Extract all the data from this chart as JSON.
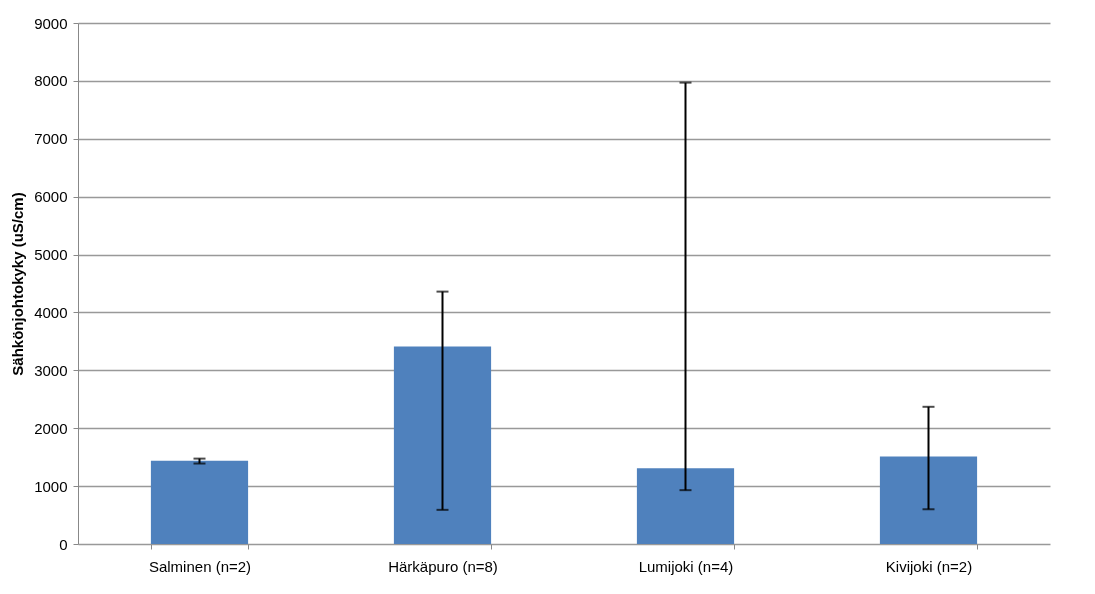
{
  "chart_data": {
    "type": "bar",
    "ylabel": "Sähkönjohtokyky  (uS/cm)",
    "categories": [
      "Salminen (n=2)",
      "Härkäpuro (n=8)",
      "Lumijoki (n=4)",
      "Kivijoki (n=2)"
    ],
    "values": [
      1440,
      3410,
      1310,
      1510
    ],
    "errors": [
      [
        1390,
        1475
      ],
      [
        590,
        4360
      ],
      [
        930,
        7970
      ],
      [
        600,
        2370
      ]
    ],
    "color": "#4f81bd",
    "ylim": [
      0,
      9000
    ],
    "yticks": [
      0,
      1000,
      2000,
      3000,
      4000,
      5000,
      6000,
      7000,
      8000,
      9000
    ],
    "grid": "y"
  }
}
